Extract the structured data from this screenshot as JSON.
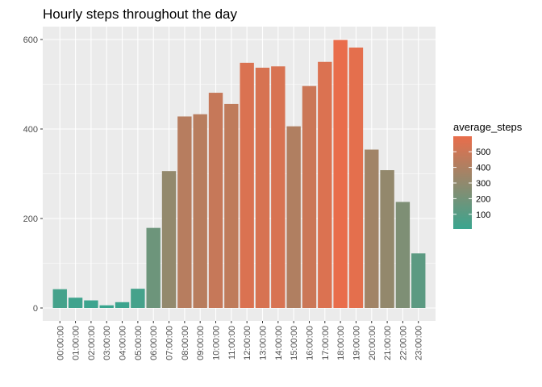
{
  "chart_data": {
    "type": "bar",
    "title": "Hourly steps throughout the day",
    "xlabel": "",
    "ylabel": "",
    "ylim": [
      0,
      640
    ],
    "y_ticks": [
      0,
      200,
      400,
      600
    ],
    "grid": true,
    "categories": [
      "00:00:00",
      "01:00:00",
      "02:00:00",
      "03:00:00",
      "04:00:00",
      "05:00:00",
      "06:00:00",
      "07:00:00",
      "08:00:00",
      "09:00:00",
      "10:00:00",
      "11:00:00",
      "12:00:00",
      "13:00:00",
      "14:00:00",
      "15:00:00",
      "16:00:00",
      "17:00:00",
      "18:00:00",
      "19:00:00",
      "20:00:00",
      "21:00:00",
      "22:00:00",
      "23:00:00"
    ],
    "values": [
      42,
      23,
      17,
      6,
      13,
      43,
      179,
      306,
      428,
      433,
      481,
      456,
      548,
      537,
      540,
      406,
      496,
      550,
      599,
      582,
      354,
      308,
      237,
      122
    ],
    "fill_by": "average_steps",
    "legend": {
      "title": "average_steps",
      "position": "right",
      "ticks": [
        100,
        200,
        300,
        400,
        500
      ],
      "range": [
        6,
        599
      ]
    },
    "colors": {
      "low": "#3aa58f",
      "high": "#e96d4b",
      "panel": "#ebebeb",
      "grid": "#ffffff"
    }
  }
}
